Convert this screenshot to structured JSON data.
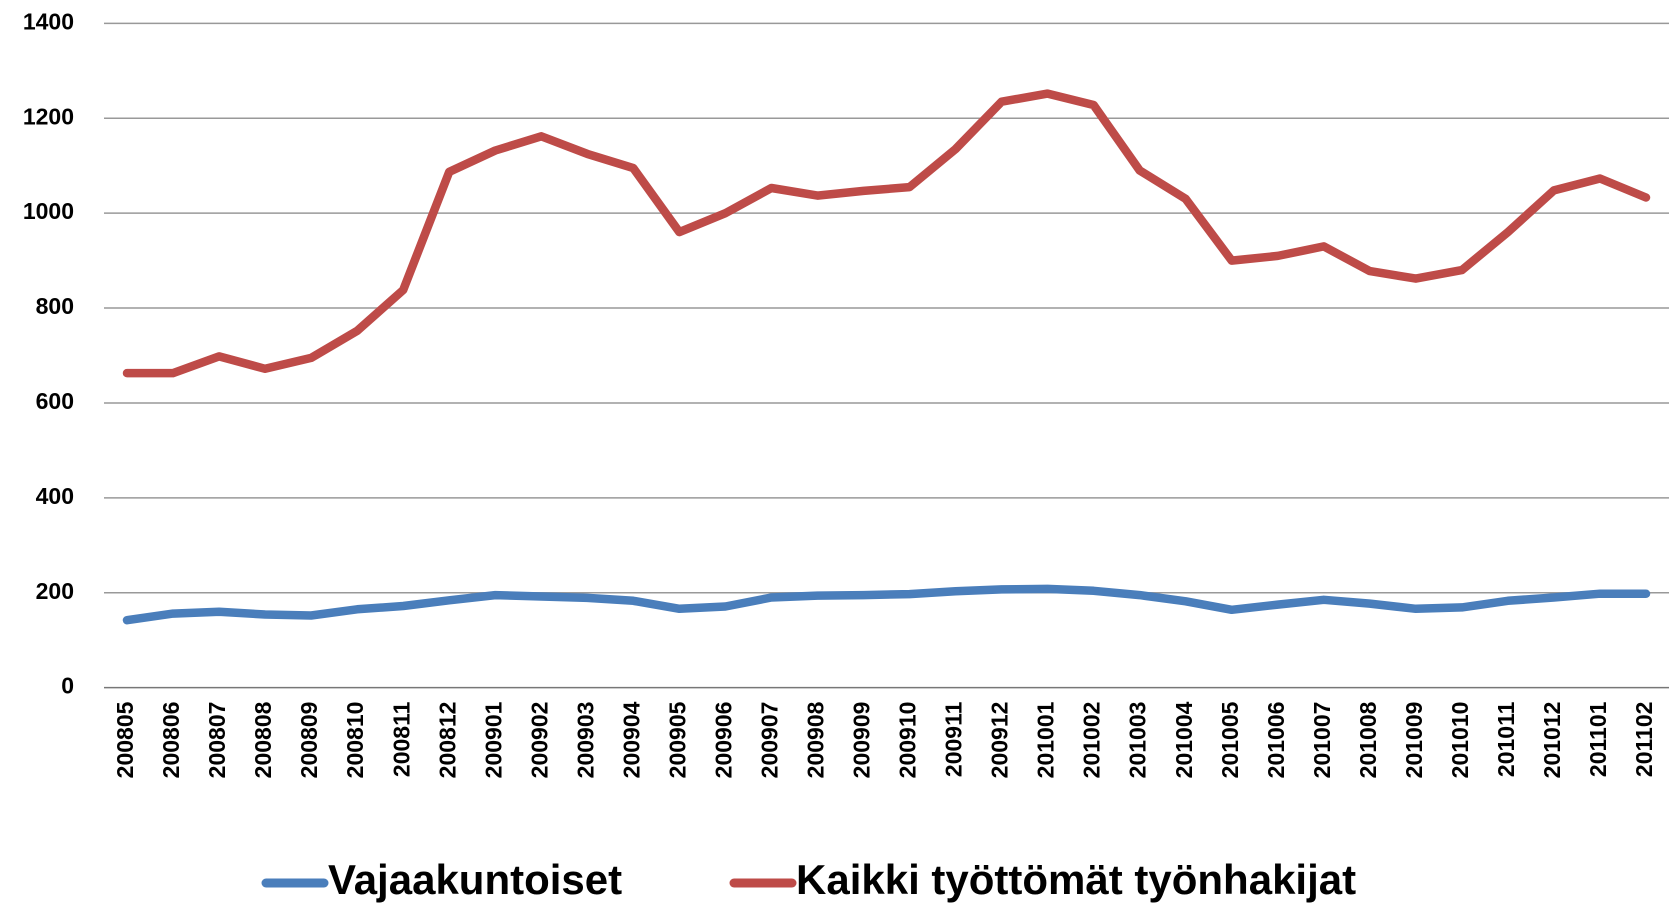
{
  "chart_data": {
    "type": "line",
    "categories": [
      "200805",
      "200806",
      "200807",
      "200808",
      "200809",
      "200810",
      "200811",
      "200812",
      "200901",
      "200902",
      "200903",
      "200904",
      "200905",
      "200906",
      "200907",
      "200908",
      "200909",
      "200910",
      "200911",
      "200912",
      "201001",
      "201002",
      "201003",
      "201004",
      "201005",
      "201006",
      "201007",
      "201008",
      "201009",
      "201010",
      "201011",
      "201012",
      "201101",
      "201102"
    ],
    "series": [
      {
        "name": "Vajaakuntoiset",
        "color": "#4a7ebb",
        "values": [
          142,
          156,
          160,
          154,
          152,
          165,
          172,
          184,
          195,
          192,
          189,
          183,
          166,
          171,
          190,
          194,
          195,
          197,
          203,
          207,
          208,
          204,
          195,
          182,
          164,
          175,
          185,
          177,
          166,
          169,
          183,
          190,
          198,
          198
        ]
      },
      {
        "name": "Kaikki työttömät työnhakijat",
        "color": "#be4b48",
        "values": [
          663,
          663,
          698,
          672,
          695,
          752,
          838,
          1087,
          1132,
          1162,
          1125,
          1095,
          960,
          1000,
          1053,
          1037,
          1047,
          1055,
          1135,
          1235,
          1252,
          1228,
          1090,
          1030,
          900,
          910,
          930,
          878,
          862,
          880,
          960,
          1048,
          1073,
          1033
        ]
      }
    ],
    "ylim": [
      0,
      1400
    ],
    "yticks": [
      0,
      200,
      400,
      600,
      800,
      1000,
      1200,
      1400
    ],
    "grid": true,
    "legend": "bottom"
  }
}
